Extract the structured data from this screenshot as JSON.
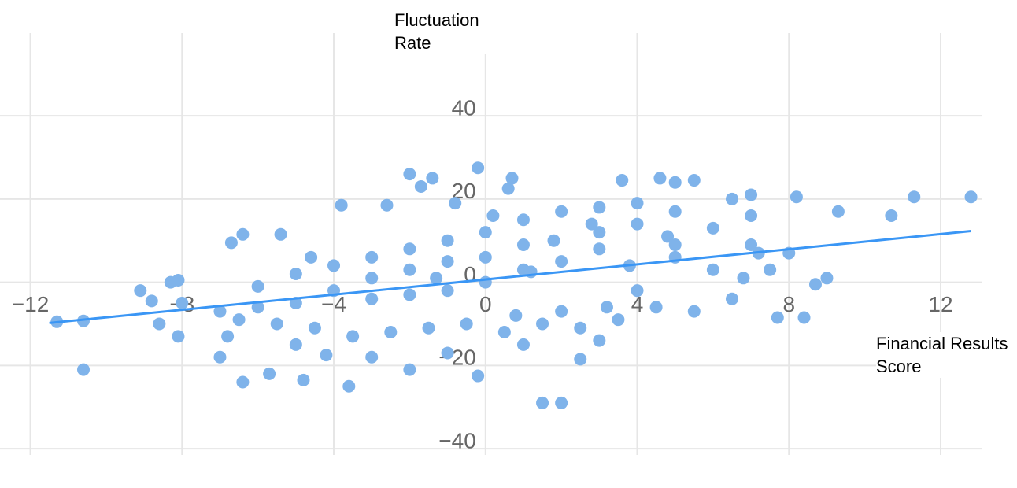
{
  "chart_data": {
    "type": "scatter",
    "x_label": "Financial Results Score",
    "y_label": "Fluctuation Rate",
    "xlim": [
      -12.8,
      13.1
    ],
    "ylim": [
      -41.5,
      59.5
    ],
    "xticks": [
      {
        "value": -12,
        "label": "−12"
      },
      {
        "value": -8,
        "label": "−8"
      },
      {
        "value": -4,
        "label": "−4"
      },
      0,
      4,
      8,
      12
    ],
    "yticks": [
      {
        "value": -40,
        "label": "−40"
      },
      {
        "value": -20,
        "label": "−20"
      },
      0,
      20,
      40
    ],
    "grid": true,
    "series": [
      {
        "color": "#7fb3ea",
        "x": [
          -11.3,
          -10.6,
          -10.6,
          -9.1,
          -8.8,
          -8.6,
          -8.3,
          -8.1,
          -8,
          -8.1,
          -6.7,
          -6.4,
          -6.4,
          -5.7,
          -5.4,
          -4.8,
          -3.6,
          -3.8,
          -2.6,
          -2,
          -1.4,
          -1.7,
          -0.2,
          0.7,
          0.6,
          1.5,
          2,
          2.5,
          3.6,
          4.6,
          5,
          5.5,
          8.2,
          9.3,
          10.7,
          11.3,
          12.8,
          8.4,
          7.7,
          9,
          8.7,
          -0.2,
          -2,
          -7,
          -6.8,
          -5,
          -4.2,
          -3,
          7,
          7,
          6.5,
          -1,
          1,
          3,
          4,
          5,
          6,
          3,
          2,
          1,
          0,
          -1,
          -2,
          -3,
          -4,
          -5,
          -6,
          -7,
          -6,
          -5,
          -4,
          -3,
          -2,
          -1,
          0,
          1,
          2,
          3,
          4,
          5,
          6,
          7,
          8,
          7.5,
          6.5,
          5.5,
          4.5,
          3.5,
          2.5,
          1.5,
          0.5,
          -0.5,
          -1.5,
          -2.5,
          -3.5,
          -4.5,
          -5.5,
          -6.5,
          3,
          1,
          -1,
          -3,
          5,
          2,
          -2,
          0,
          4,
          1.8,
          2.8,
          0.2,
          -0.8,
          -4.6,
          4.8,
          3.2,
          0.8,
          1.2,
          -1.3,
          3.8,
          6.8,
          7.2
        ],
        "values": [
          -9.5,
          -9.3,
          -21,
          -2,
          -4.5,
          -10,
          0,
          -13,
          -5,
          0.5,
          9.5,
          11.5,
          -24,
          -22,
          11.5,
          -23.5,
          -25,
          18.5,
          18.5,
          26,
          25,
          23,
          27.5,
          25,
          22.5,
          -29,
          -29,
          -18.5,
          24.5,
          25,
          24,
          24.5,
          20.5,
          17,
          16,
          20.5,
          20.5,
          -8.5,
          -8.5,
          1,
          -0.5,
          -22.5,
          -21,
          -18,
          -13,
          -15,
          -17.5,
          -18,
          16,
          21,
          20,
          -17,
          -15,
          -14,
          14,
          9,
          3,
          8,
          5,
          3,
          0,
          -2,
          -3,
          -4,
          -2,
          -5,
          -6,
          -7,
          -1,
          2,
          4,
          6,
          8,
          10,
          12,
          15,
          17,
          18,
          19,
          17,
          13,
          9,
          7,
          3,
          -4,
          -7,
          -6,
          -9,
          -11,
          -10,
          -12,
          -10,
          -11,
          -12,
          -13,
          -11,
          -10,
          -9,
          12,
          9,
          5,
          1,
          6,
          -7,
          3,
          6,
          -2,
          10,
          14,
          16,
          19,
          6,
          11,
          -6,
          -8,
          2.5,
          1,
          4,
          1,
          7
        ]
      }
    ],
    "trend_line": {
      "color": "#3a96f5",
      "x": [
        -11.5,
        12.8
      ],
      "values": [
        -9.8,
        12.3
      ]
    }
  }
}
